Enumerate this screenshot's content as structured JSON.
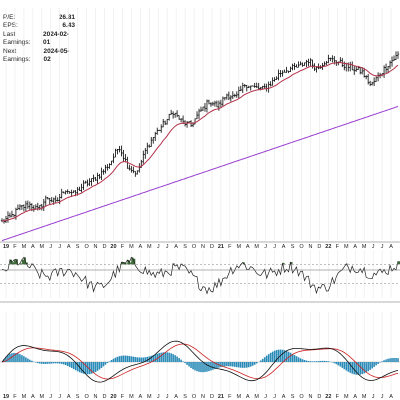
{
  "stats": [
    {
      "label": "P/E:",
      "value": "26.81"
    },
    {
      "label": "EPS:",
      "value": "6.43"
    },
    {
      "label": "Last Earnings:",
      "value": "2024-02-01"
    },
    {
      "label": "Next Earnings:",
      "value": "2024-05-02"
    }
  ],
  "colors": {
    "price_bars": "#000000",
    "ma_short": "#b4324a",
    "ma_long": "#9a3fd0",
    "rsi_line": "#222222",
    "rsi_fill": "#3f6b3a",
    "macd_line": "#111111",
    "macd_signal": "#cc2222",
    "histogram": "#2b8bb8",
    "grid": "#e8e8e8"
  },
  "chart_data": [
    {
      "type": "ohlc",
      "panel": "price",
      "x_tick_labels": [
        "19",
        "F",
        "M",
        "A",
        "M",
        "J",
        "J",
        "A",
        "S",
        "O",
        "N",
        "D",
        "20",
        "F",
        "M",
        "A",
        "M",
        "J",
        "J",
        "A",
        "S",
        "O",
        "N",
        "D",
        "21",
        "F",
        "M",
        "A",
        "M",
        "J",
        "J",
        "A",
        "S",
        "O",
        "N",
        "D",
        "22",
        "F",
        "M",
        "A",
        "M",
        "J",
        "J",
        "A"
      ],
      "price_path_pct": [
        0.06,
        0.09,
        0.14,
        0.16,
        0.13,
        0.2,
        0.17,
        0.25,
        0.22,
        0.27,
        0.3,
        0.34,
        0.4,
        0.5,
        0.38,
        0.34,
        0.48,
        0.57,
        0.63,
        0.7,
        0.64,
        0.62,
        0.7,
        0.76,
        0.73,
        0.8,
        0.78,
        0.86,
        0.84,
        0.83,
        0.87,
        0.93,
        0.95,
        0.96,
        1.0,
        0.95,
        1.0,
        1.0,
        0.97,
        0.95,
        0.93,
        0.85,
        0.92,
        0.98,
        1.03
      ],
      "series": [
        {
          "name": "",
          "role": "short moving average"
        },
        {
          "name": "",
          "role": "long moving average"
        }
      ]
    },
    {
      "type": "line",
      "panel": "oscillator",
      "note": "RSI-style oscillator with shaded regions above upper band"
    },
    {
      "type": "line",
      "panel": "macd",
      "series": [
        {
          "name": "",
          "role": "macd"
        },
        {
          "name": "",
          "role": "signal"
        },
        {
          "name": "",
          "role": "histogram"
        }
      ]
    }
  ]
}
